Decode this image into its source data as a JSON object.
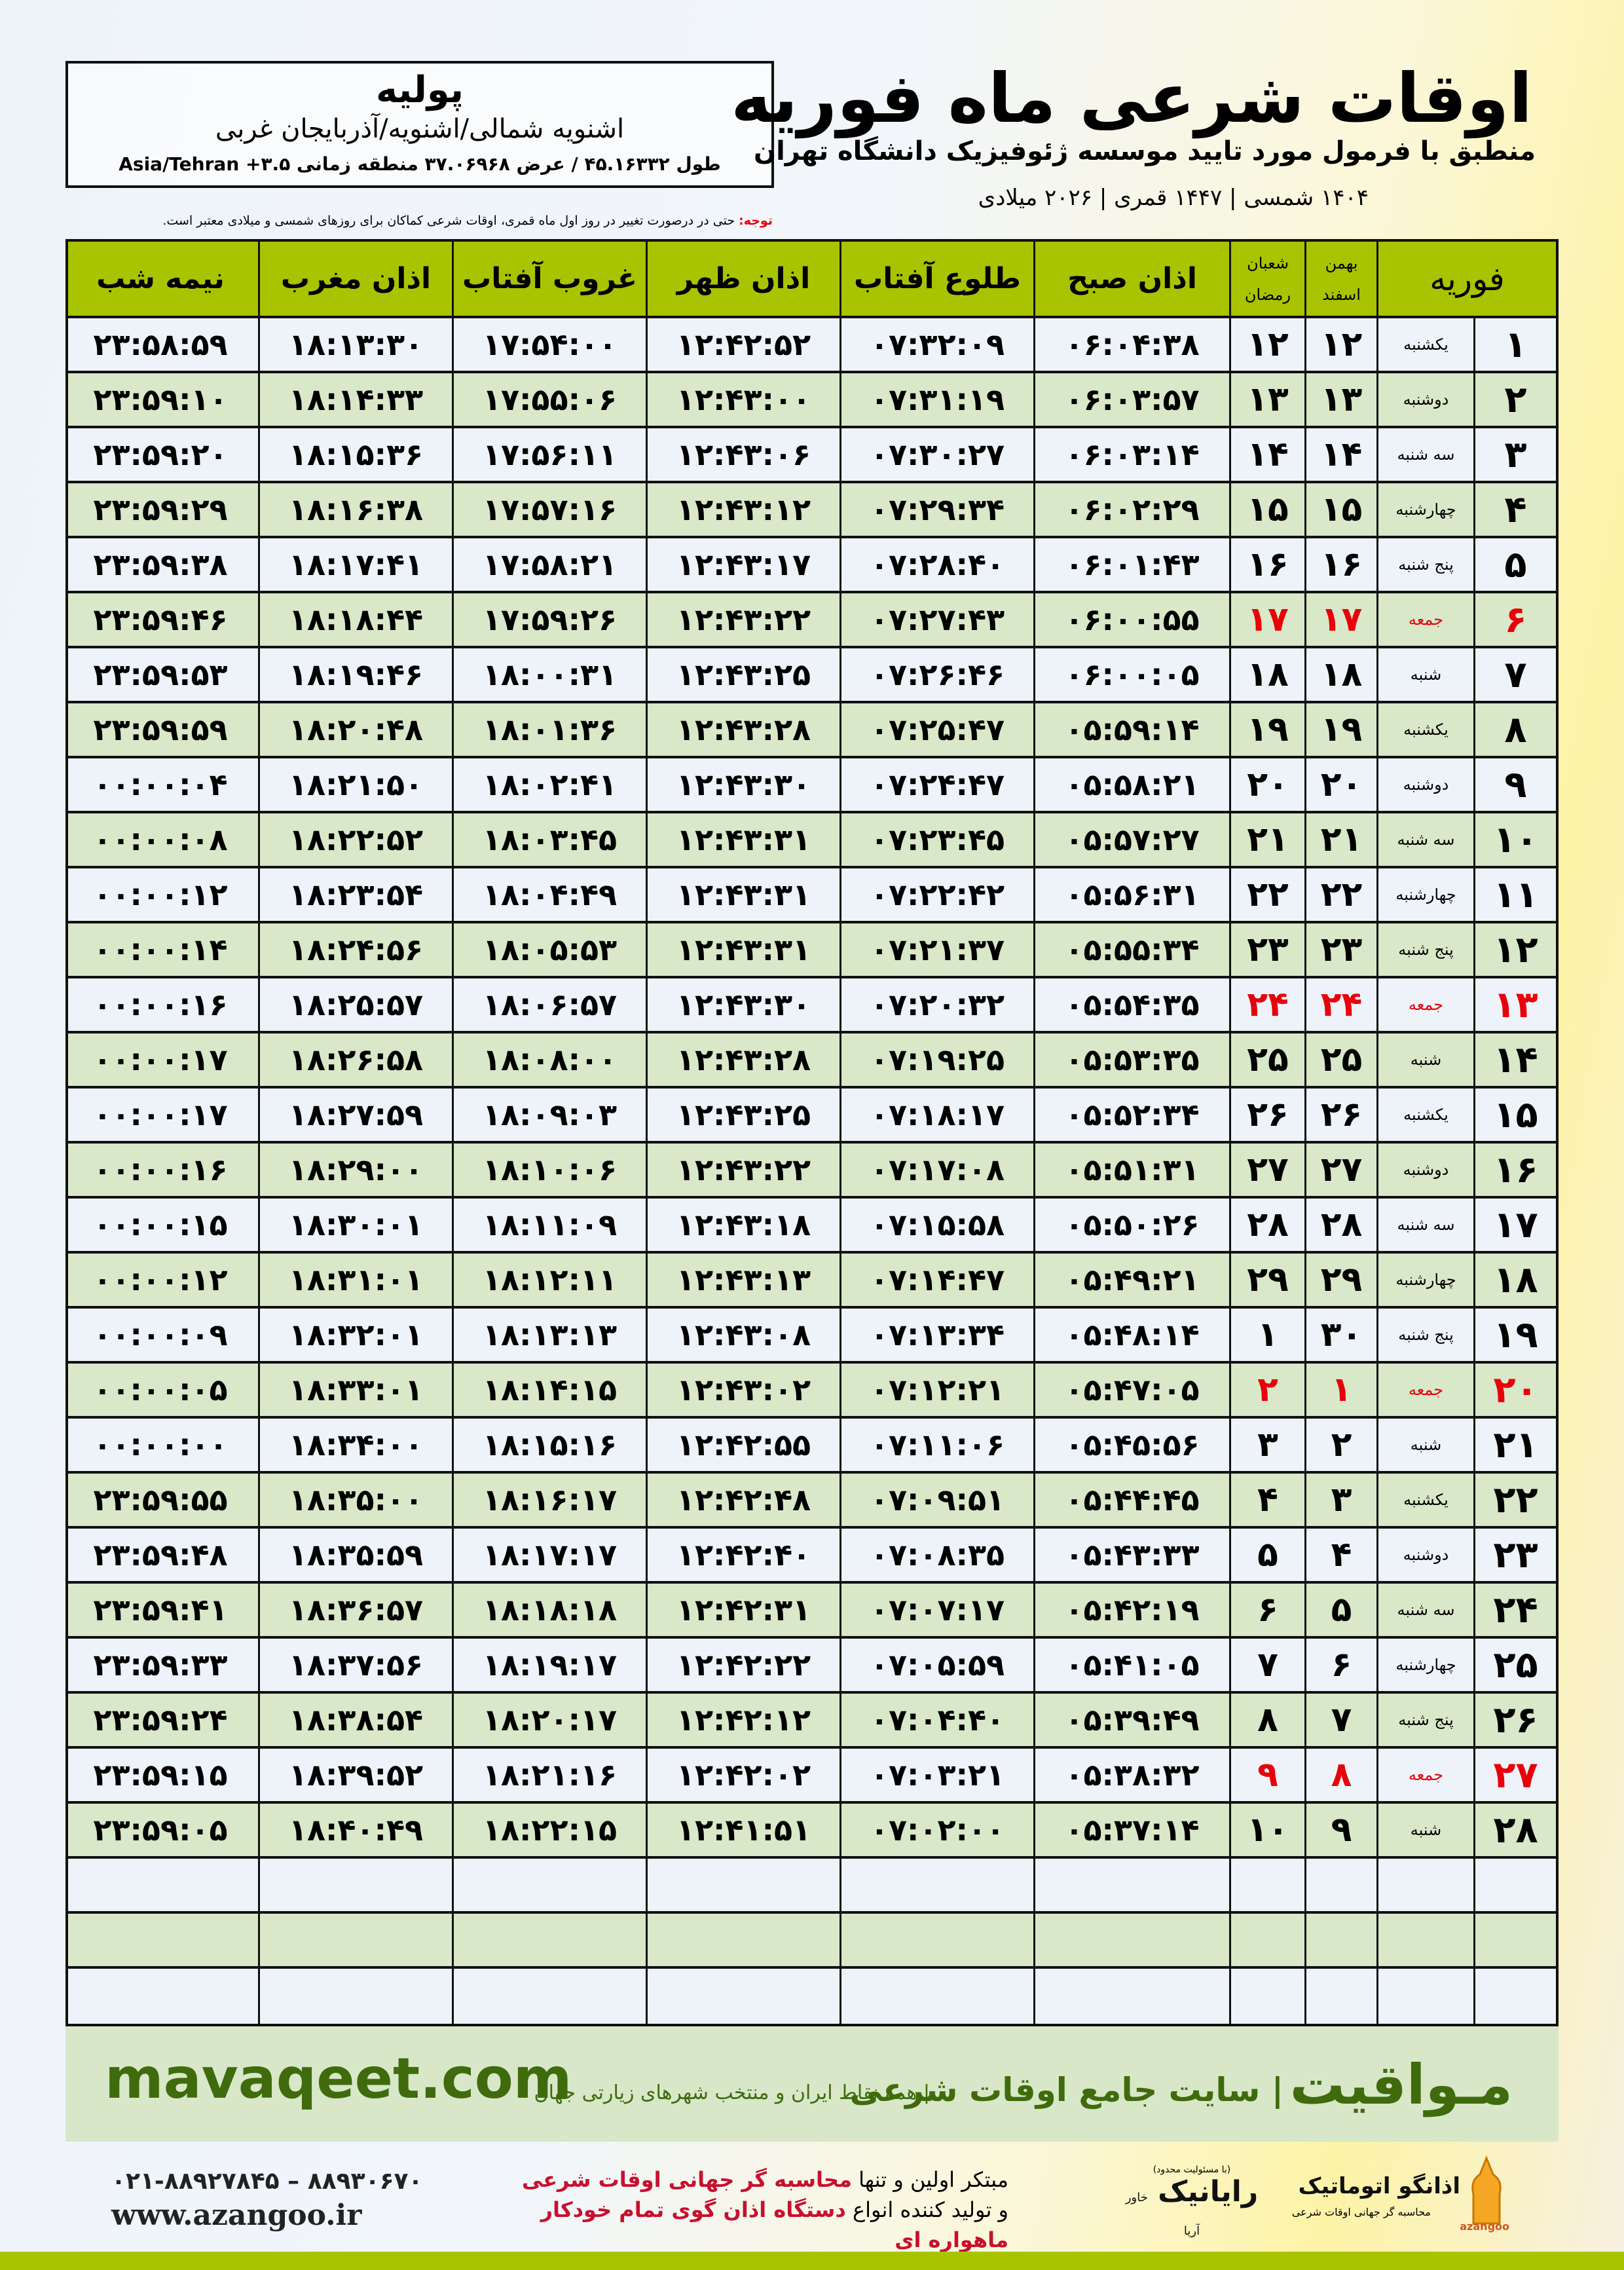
{
  "location": {
    "city": "پولیه",
    "region": "اشنویه شمالی/اشنویه/آذربایجان غربی",
    "coords": "طول ۴۵.۱۶۳۳۲ / عرض ۳۷.۰۶۹۶۸ منطقه زمانی ۳.۵+ Asia/Tehran"
  },
  "header": {
    "title": "اوقات شرعی ماه فوریه",
    "subtitle": "منطبق با فرمول مورد تایید موسسه ژئوفیزیک دانشگاه تهران",
    "dates": "۱۴۰۴ شمسی | ۱۴۴۷ قمری | ۲۰۲۶ میلادی"
  },
  "note": {
    "label": "توجه:",
    "text": " حتی در درصورت تغییر در روز اول ماه قمری، اوقات شرعی کماکان برای روزهای شمسی و میلادی معتبر است."
  },
  "table": {
    "columns": {
      "month": "فوریه",
      "shamsi_1": "بهمن",
      "shamsi_2": "اسفند",
      "hijri_1": "شعبان",
      "hijri_2": "رمضان",
      "sobh": "اذان صبح",
      "tolu": "طلوع آفتاب",
      "zohr": "اذان ظهر",
      "ghurub": "غروب آفتاب",
      "maghrib": "اذان مغرب",
      "nimeshab": "نیمه شب"
    },
    "friday_color": "#e8000b",
    "header_color": "#a8c400",
    "rows": [
      {
        "day": "۱",
        "weekday": "یکشنبه",
        "shamsi": "۱۲",
        "hijri": "۱۲",
        "sobh": "۰۶:۰۴:۳۸",
        "tolu": "۰۷:۳۲:۰۹",
        "zohr": "۱۲:۴۲:۵۲",
        "ghurub": "۱۷:۵۴:۰۰",
        "maghrib": "۱۸:۱۳:۳۰",
        "nimeshab": "۲۳:۵۸:۵۹"
      },
      {
        "day": "۲",
        "weekday": "دوشنبه",
        "shamsi": "۱۳",
        "hijri": "۱۳",
        "sobh": "۰۶:۰۳:۵۷",
        "tolu": "۰۷:۳۱:۱۹",
        "zohr": "۱۲:۴۳:۰۰",
        "ghurub": "۱۷:۵۵:۰۶",
        "maghrib": "۱۸:۱۴:۳۳",
        "nimeshab": "۲۳:۵۹:۱۰"
      },
      {
        "day": "۳",
        "weekday": "سه شنبه",
        "shamsi": "۱۴",
        "hijri": "۱۴",
        "sobh": "۰۶:۰۳:۱۴",
        "tolu": "۰۷:۳۰:۲۷",
        "zohr": "۱۲:۴۳:۰۶",
        "ghurub": "۱۷:۵۶:۱۱",
        "maghrib": "۱۸:۱۵:۳۶",
        "nimeshab": "۲۳:۵۹:۲۰"
      },
      {
        "day": "۴",
        "weekday": "چهارشنبه",
        "shamsi": "۱۵",
        "hijri": "۱۵",
        "sobh": "۰۶:۰۲:۲۹",
        "tolu": "۰۷:۲۹:۳۴",
        "zohr": "۱۲:۴۳:۱۲",
        "ghurub": "۱۷:۵۷:۱۶",
        "maghrib": "۱۸:۱۶:۳۸",
        "nimeshab": "۲۳:۵۹:۲۹"
      },
      {
        "day": "۵",
        "weekday": "پنج شنبه",
        "shamsi": "۱۶",
        "hijri": "۱۶",
        "sobh": "۰۶:۰۱:۴۳",
        "tolu": "۰۷:۲۸:۴۰",
        "zohr": "۱۲:۴۳:۱۷",
        "ghurub": "۱۷:۵۸:۲۱",
        "maghrib": "۱۸:۱۷:۴۱",
        "nimeshab": "۲۳:۵۹:۳۸"
      },
      {
        "day": "۶",
        "weekday": "جمعه",
        "shamsi": "۱۷",
        "hijri": "۱۷",
        "sobh": "۰۶:۰۰:۵۵",
        "tolu": "۰۷:۲۷:۴۳",
        "zohr": "۱۲:۴۳:۲۲",
        "ghurub": "۱۷:۵۹:۲۶",
        "maghrib": "۱۸:۱۸:۴۴",
        "nimeshab": "۲۳:۵۹:۴۶"
      },
      {
        "day": "۷",
        "weekday": "شنبه",
        "shamsi": "۱۸",
        "hijri": "۱۸",
        "sobh": "۰۶:۰۰:۰۵",
        "tolu": "۰۷:۲۶:۴۶",
        "zohr": "۱۲:۴۳:۲۵",
        "ghurub": "۱۸:۰۰:۳۱",
        "maghrib": "۱۸:۱۹:۴۶",
        "nimeshab": "۲۳:۵۹:۵۳"
      },
      {
        "day": "۸",
        "weekday": "یکشنبه",
        "shamsi": "۱۹",
        "hijri": "۱۹",
        "sobh": "۰۵:۵۹:۱۴",
        "tolu": "۰۷:۲۵:۴۷",
        "zohr": "۱۲:۴۳:۲۸",
        "ghurub": "۱۸:۰۱:۳۶",
        "maghrib": "۱۸:۲۰:۴۸",
        "nimeshab": "۲۳:۵۹:۵۹"
      },
      {
        "day": "۹",
        "weekday": "دوشنبه",
        "shamsi": "۲۰",
        "hijri": "۲۰",
        "sobh": "۰۵:۵۸:۲۱",
        "tolu": "۰۷:۲۴:۴۷",
        "zohr": "۱۲:۴۳:۳۰",
        "ghurub": "۱۸:۰۲:۴۱",
        "maghrib": "۱۸:۲۱:۵۰",
        "nimeshab": "۰۰:۰۰:۰۴"
      },
      {
        "day": "۱۰",
        "weekday": "سه شنبه",
        "shamsi": "۲۱",
        "hijri": "۲۱",
        "sobh": "۰۵:۵۷:۲۷",
        "tolu": "۰۷:۲۳:۴۵",
        "zohr": "۱۲:۴۳:۳۱",
        "ghurub": "۱۸:۰۳:۴۵",
        "maghrib": "۱۸:۲۲:۵۲",
        "nimeshab": "۰۰:۰۰:۰۸"
      },
      {
        "day": "۱۱",
        "weekday": "چهارشنبه",
        "shamsi": "۲۲",
        "hijri": "۲۲",
        "sobh": "۰۵:۵۶:۳۱",
        "tolu": "۰۷:۲۲:۴۲",
        "zohr": "۱۲:۴۳:۳۱",
        "ghurub": "۱۸:۰۴:۴۹",
        "maghrib": "۱۸:۲۳:۵۴",
        "nimeshab": "۰۰:۰۰:۱۲"
      },
      {
        "day": "۱۲",
        "weekday": "پنج شنبه",
        "shamsi": "۲۳",
        "hijri": "۲۳",
        "sobh": "۰۵:۵۵:۳۴",
        "tolu": "۰۷:۲۱:۳۷",
        "zohr": "۱۲:۴۳:۳۱",
        "ghurub": "۱۸:۰۵:۵۳",
        "maghrib": "۱۸:۲۴:۵۶",
        "nimeshab": "۰۰:۰۰:۱۴"
      },
      {
        "day": "۱۳",
        "weekday": "جمعه",
        "shamsi": "۲۴",
        "hijri": "۲۴",
        "sobh": "۰۵:۵۴:۳۵",
        "tolu": "۰۷:۲۰:۳۲",
        "zohr": "۱۲:۴۳:۳۰",
        "ghurub": "۱۸:۰۶:۵۷",
        "maghrib": "۱۸:۲۵:۵۷",
        "nimeshab": "۰۰:۰۰:۱۶"
      },
      {
        "day": "۱۴",
        "weekday": "شنبه",
        "shamsi": "۲۵",
        "hijri": "۲۵",
        "sobh": "۰۵:۵۳:۳۵",
        "tolu": "۰۷:۱۹:۲۵",
        "zohr": "۱۲:۴۳:۲۸",
        "ghurub": "۱۸:۰۸:۰۰",
        "maghrib": "۱۸:۲۶:۵۸",
        "nimeshab": "۰۰:۰۰:۱۷"
      },
      {
        "day": "۱۵",
        "weekday": "یکشنبه",
        "shamsi": "۲۶",
        "hijri": "۲۶",
        "sobh": "۰۵:۵۲:۳۴",
        "tolu": "۰۷:۱۸:۱۷",
        "zohr": "۱۲:۴۳:۲۵",
        "ghurub": "۱۸:۰۹:۰۳",
        "maghrib": "۱۸:۲۷:۵۹",
        "nimeshab": "۰۰:۰۰:۱۷"
      },
      {
        "day": "۱۶",
        "weekday": "دوشنبه",
        "shamsi": "۲۷",
        "hijri": "۲۷",
        "sobh": "۰۵:۵۱:۳۱",
        "tolu": "۰۷:۱۷:۰۸",
        "zohr": "۱۲:۴۳:۲۲",
        "ghurub": "۱۸:۱۰:۰۶",
        "maghrib": "۱۸:۲۹:۰۰",
        "nimeshab": "۰۰:۰۰:۱۶"
      },
      {
        "day": "۱۷",
        "weekday": "سه شنبه",
        "shamsi": "۲۸",
        "hijri": "۲۸",
        "sobh": "۰۵:۵۰:۲۶",
        "tolu": "۰۷:۱۵:۵۸",
        "zohr": "۱۲:۴۳:۱۸",
        "ghurub": "۱۸:۱۱:۰۹",
        "maghrib": "۱۸:۳۰:۰۱",
        "nimeshab": "۰۰:۰۰:۱۵"
      },
      {
        "day": "۱۸",
        "weekday": "چهارشنبه",
        "shamsi": "۲۹",
        "hijri": "۲۹",
        "sobh": "۰۵:۴۹:۲۱",
        "tolu": "۰۷:۱۴:۴۷",
        "zohr": "۱۲:۴۳:۱۳",
        "ghurub": "۱۸:۱۲:۱۱",
        "maghrib": "۱۸:۳۱:۰۱",
        "nimeshab": "۰۰:۰۰:۱۲"
      },
      {
        "day": "۱۹",
        "weekday": "پنج شنبه",
        "shamsi": "۳۰",
        "hijri": "۱",
        "sobh": "۰۵:۴۸:۱۴",
        "tolu": "۰۷:۱۳:۳۴",
        "zohr": "۱۲:۴۳:۰۸",
        "ghurub": "۱۸:۱۳:۱۳",
        "maghrib": "۱۸:۳۲:۰۱",
        "nimeshab": "۰۰:۰۰:۰۹"
      },
      {
        "day": "۲۰",
        "weekday": "جمعه",
        "shamsi": "۱",
        "hijri": "۲",
        "sobh": "۰۵:۴۷:۰۵",
        "tolu": "۰۷:۱۲:۲۱",
        "zohr": "۱۲:۴۳:۰۲",
        "ghurub": "۱۸:۱۴:۱۵",
        "maghrib": "۱۸:۳۳:۰۱",
        "nimeshab": "۰۰:۰۰:۰۵"
      },
      {
        "day": "۲۱",
        "weekday": "شنبه",
        "shamsi": "۲",
        "hijri": "۳",
        "sobh": "۰۵:۴۵:۵۶",
        "tolu": "۰۷:۱۱:۰۶",
        "zohr": "۱۲:۴۲:۵۵",
        "ghurub": "۱۸:۱۵:۱۶",
        "maghrib": "۱۸:۳۴:۰۰",
        "nimeshab": "۰۰:۰۰:۰۰"
      },
      {
        "day": "۲۲",
        "weekday": "یکشنبه",
        "shamsi": "۳",
        "hijri": "۴",
        "sobh": "۰۵:۴۴:۴۵",
        "tolu": "۰۷:۰۹:۵۱",
        "zohr": "۱۲:۴۲:۴۸",
        "ghurub": "۱۸:۱۶:۱۷",
        "maghrib": "۱۸:۳۵:۰۰",
        "nimeshab": "۲۳:۵۹:۵۵"
      },
      {
        "day": "۲۳",
        "weekday": "دوشنبه",
        "shamsi": "۴",
        "hijri": "۵",
        "sobh": "۰۵:۴۳:۳۳",
        "tolu": "۰۷:۰۸:۳۵",
        "zohr": "۱۲:۴۲:۴۰",
        "ghurub": "۱۸:۱۷:۱۷",
        "maghrib": "۱۸:۳۵:۵۹",
        "nimeshab": "۲۳:۵۹:۴۸"
      },
      {
        "day": "۲۴",
        "weekday": "سه شنبه",
        "shamsi": "۵",
        "hijri": "۶",
        "sobh": "۰۵:۴۲:۱۹",
        "tolu": "۰۷:۰۷:۱۷",
        "zohr": "۱۲:۴۲:۳۱",
        "ghurub": "۱۸:۱۸:۱۸",
        "maghrib": "۱۸:۳۶:۵۷",
        "nimeshab": "۲۳:۵۹:۴۱"
      },
      {
        "day": "۲۵",
        "weekday": "چهارشنبه",
        "shamsi": "۶",
        "hijri": "۷",
        "sobh": "۰۵:۴۱:۰۵",
        "tolu": "۰۷:۰۵:۵۹",
        "zohr": "۱۲:۴۲:۲۲",
        "ghurub": "۱۸:۱۹:۱۷",
        "maghrib": "۱۸:۳۷:۵۶",
        "nimeshab": "۲۳:۵۹:۳۳"
      },
      {
        "day": "۲۶",
        "weekday": "پنج شنبه",
        "shamsi": "۷",
        "hijri": "۸",
        "sobh": "۰۵:۳۹:۴۹",
        "tolu": "۰۷:۰۴:۴۰",
        "zohr": "۱۲:۴۲:۱۲",
        "ghurub": "۱۸:۲۰:۱۷",
        "maghrib": "۱۸:۳۸:۵۴",
        "nimeshab": "۲۳:۵۹:۲۴"
      },
      {
        "day": "۲۷",
        "weekday": "جمعه",
        "shamsi": "۸",
        "hijri": "۹",
        "sobh": "۰۵:۳۸:۳۲",
        "tolu": "۰۷:۰۳:۲۱",
        "zohr": "۱۲:۴۲:۰۲",
        "ghurub": "۱۸:۲۱:۱۶",
        "maghrib": "۱۸:۳۹:۵۲",
        "nimeshab": "۲۳:۵۹:۱۵"
      },
      {
        "day": "۲۸",
        "weekday": "شنبه",
        "shamsi": "۹",
        "hijri": "۱۰",
        "sobh": "۰۵:۳۷:۱۴",
        "tolu": "۰۷:۰۲:۰۰",
        "zohr": "۱۲:۴۱:۵۱",
        "ghurub": "۱۸:۲۲:۱۵",
        "maghrib": "۱۸:۴۰:۴۹",
        "nimeshab": "۲۳:۵۹:۰۵"
      }
    ]
  },
  "footer": {
    "brand": "مـواقیت",
    "brand_tagline": "| سایت جامع اوقات شرعی",
    "brand_sub": "| همه نقاط ایران و منتخب شهرهای زیارتی جهان",
    "site": "mavaqeet.com",
    "line1_a": "مبتکر اولین و تنها ",
    "line1_b": "محاسبه گر جهانی اوقات شرعی",
    "line2_a": "و تولید کننده انواع ",
    "line2_b": "دستگاه اذان گوی تمام خودکار ماهواره ای",
    "phone": "۰۲۱-۸۸۹۲۷۸۴۵ – ۸۸۹۳۰۶۷۰",
    "url": "www.azangoo.ir",
    "rayanik": "رایانیک",
    "rayanik_sub": "خاور آریا",
    "rayanik_note": "(با مسئولیت محدود)",
    "azangoo_name": "اذانگو اتوماتیک",
    "azangoo_tag": "محاسبه گر جهانی اوقات شرعی",
    "azangoo_latin": "azangoo"
  }
}
